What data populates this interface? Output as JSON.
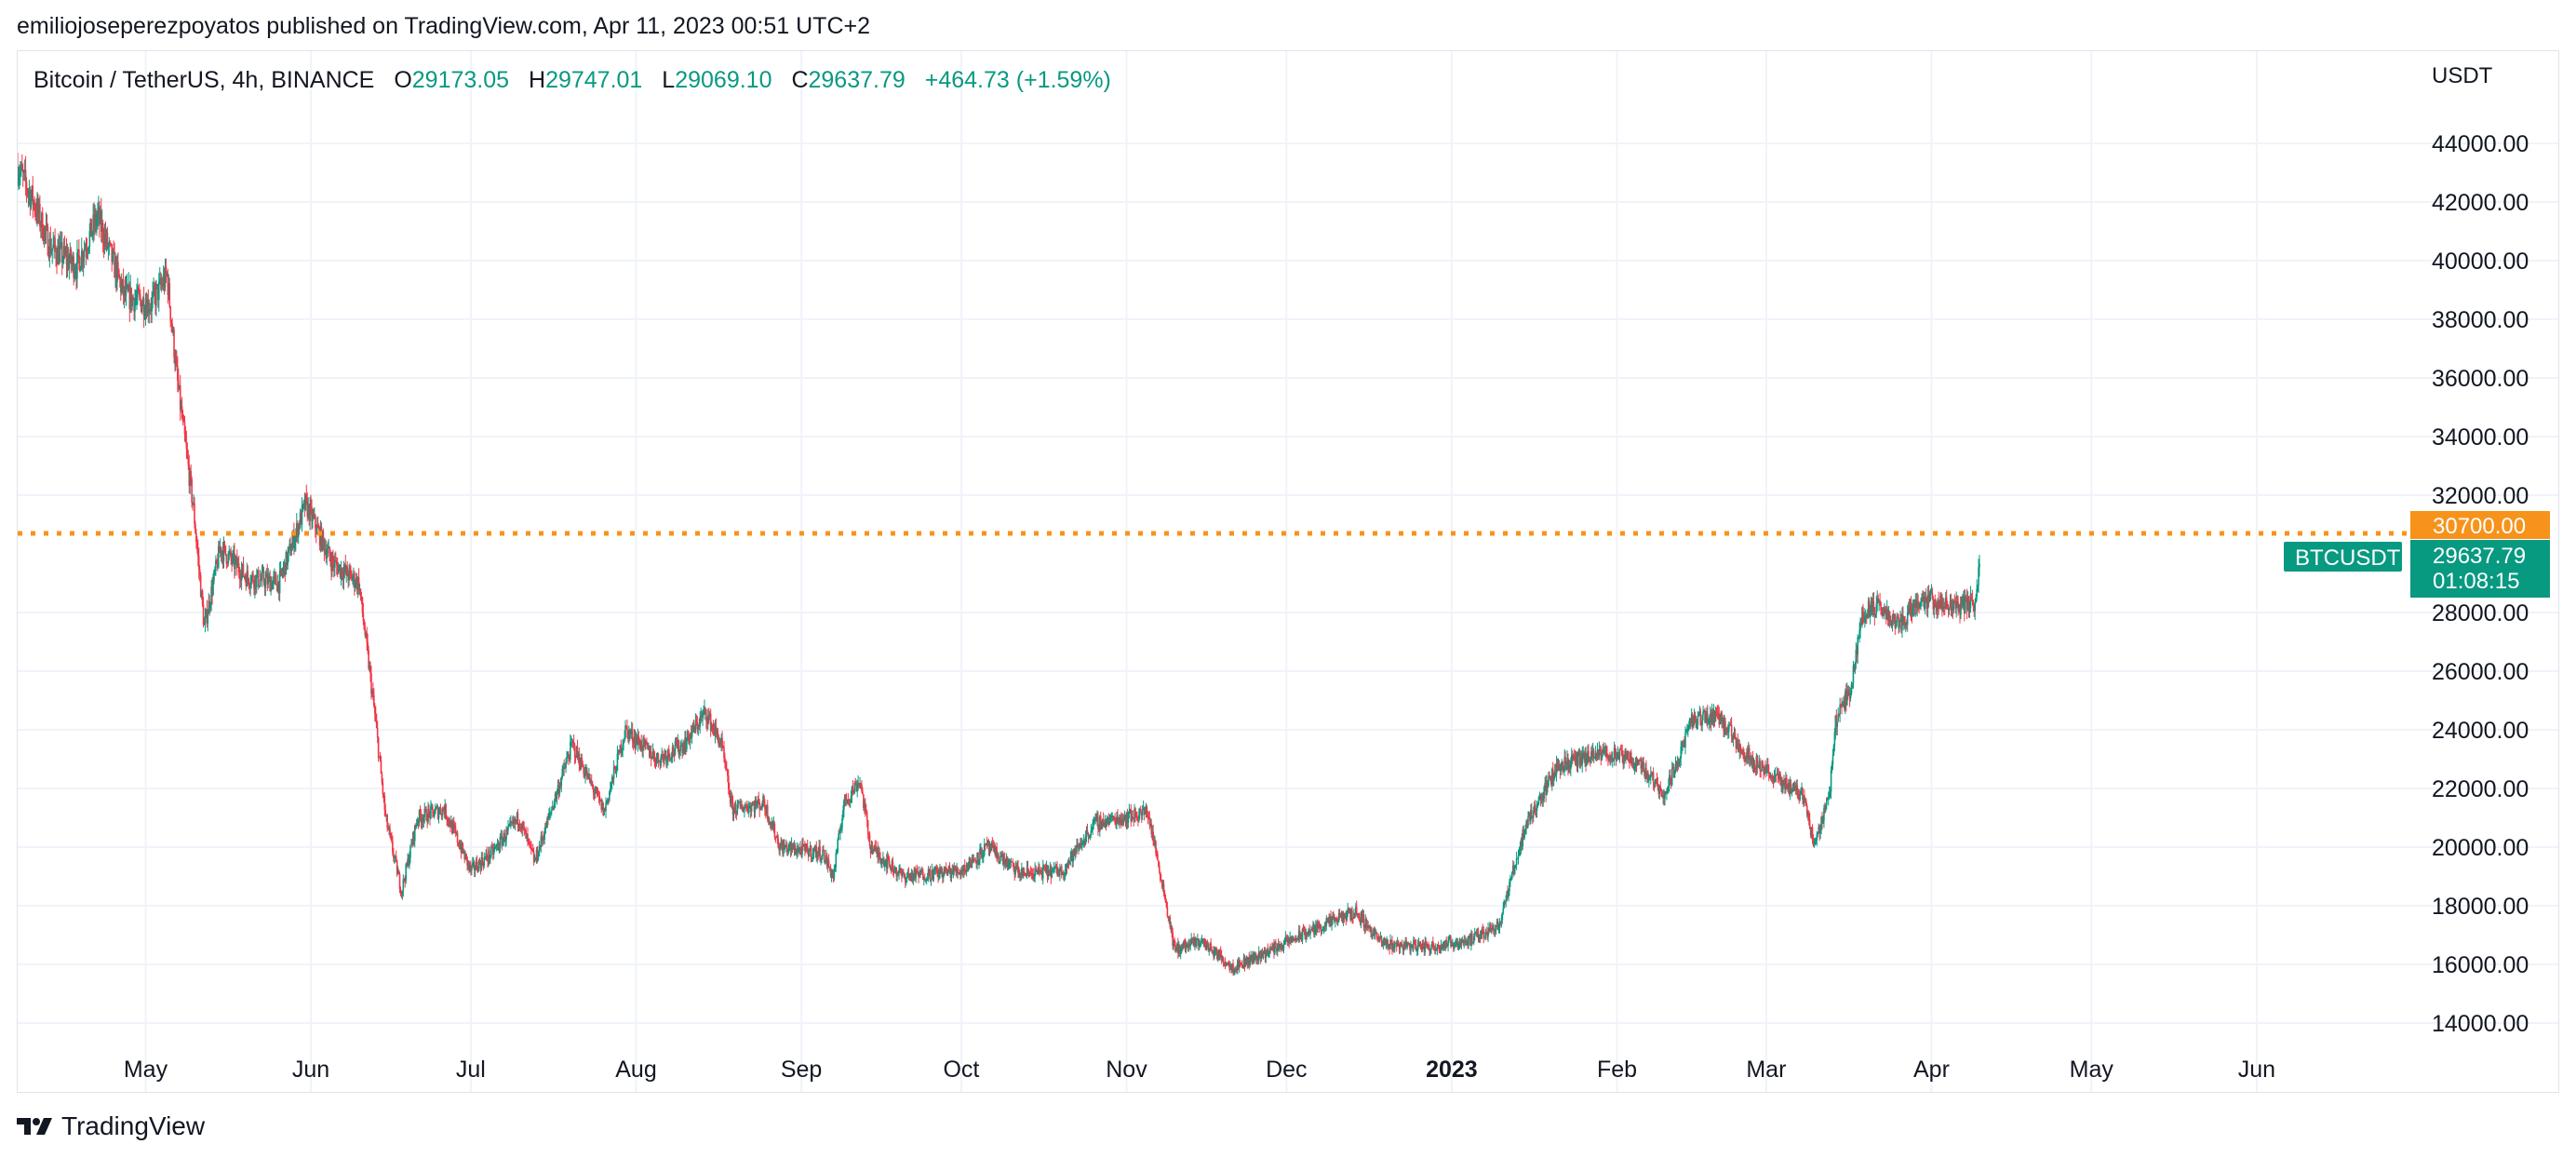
{
  "header": {
    "publisher_line": "emiliojoseperezpoyatos published on TradingView.com, Apr 11, 2023 00:51 UTC+2"
  },
  "legend": {
    "symbol": "Bitcoin / TetherUS, 4h, BINANCE",
    "open_label": "O",
    "open": "29173.05",
    "high_label": "H",
    "high": "29747.01",
    "low_label": "L",
    "low": "29069.10",
    "close_label": "C",
    "close": "29637.79",
    "change": "+464.73 (+1.59%)"
  },
  "footer": {
    "brand": "TradingView"
  },
  "colors": {
    "up": "#089981",
    "down": "#f23645",
    "level": "#f7931a",
    "grid": "#f0f3fa",
    "text": "#131722"
  },
  "chart_data": {
    "type": "candlestick",
    "symbol": "BTCUSDT",
    "interval": "4h",
    "exchange": "BINANCE",
    "currency_label": "USDT",
    "ylim": [
      12000,
      46000
    ],
    "y_ticks": [
      "14000.00",
      "16000.00",
      "18000.00",
      "20000.00",
      "22000.00",
      "24000.00",
      "26000.00",
      "28000.00",
      "32000.00",
      "34000.00",
      "36000.00",
      "38000.00",
      "40000.00",
      "42000.00",
      "44000.00"
    ],
    "x_ticks": [
      "May",
      "Jun",
      "Jul",
      "Aug",
      "Sep",
      "Oct",
      "Nov",
      "Dec",
      "2023",
      "Feb",
      "Mar",
      "Apr",
      "May",
      "Jun"
    ],
    "x_range": [
      "2022-04-07",
      "2023-06-30"
    ],
    "price_path": [
      {
        "date": "2022-04-07",
        "price": 43200
      },
      {
        "date": "2022-04-10",
        "price": 42000
      },
      {
        "date": "2022-04-13",
        "price": 40500
      },
      {
        "date": "2022-04-18",
        "price": 39800
      },
      {
        "date": "2022-04-22",
        "price": 41500
      },
      {
        "date": "2022-04-27",
        "price": 38800
      },
      {
        "date": "2022-05-02",
        "price": 38500
      },
      {
        "date": "2022-05-05",
        "price": 39500
      },
      {
        "date": "2022-05-07",
        "price": 35800
      },
      {
        "date": "2022-05-10",
        "price": 31500
      },
      {
        "date": "2022-05-12",
        "price": 27500
      },
      {
        "date": "2022-05-15",
        "price": 30200
      },
      {
        "date": "2022-05-20",
        "price": 29200
      },
      {
        "date": "2022-05-26",
        "price": 29000
      },
      {
        "date": "2022-05-31",
        "price": 31700
      },
      {
        "date": "2022-06-05",
        "price": 29700
      },
      {
        "date": "2022-06-10",
        "price": 29000
      },
      {
        "date": "2022-06-13",
        "price": 24500
      },
      {
        "date": "2022-06-15",
        "price": 21000
      },
      {
        "date": "2022-06-18",
        "price": 18500
      },
      {
        "date": "2022-06-21",
        "price": 21000
      },
      {
        "date": "2022-06-26",
        "price": 21300
      },
      {
        "date": "2022-07-01",
        "price": 19200
      },
      {
        "date": "2022-07-05",
        "price": 19800
      },
      {
        "date": "2022-07-10",
        "price": 21000
      },
      {
        "date": "2022-07-13",
        "price": 19500
      },
      {
        "date": "2022-07-20",
        "price": 23500
      },
      {
        "date": "2022-07-26",
        "price": 21200
      },
      {
        "date": "2022-07-30",
        "price": 24000
      },
      {
        "date": "2022-08-05",
        "price": 23000
      },
      {
        "date": "2022-08-10",
        "price": 23500
      },
      {
        "date": "2022-08-14",
        "price": 24600
      },
      {
        "date": "2022-08-17",
        "price": 23500
      },
      {
        "date": "2022-08-19",
        "price": 21300
      },
      {
        "date": "2022-08-25",
        "price": 21500
      },
      {
        "date": "2022-08-28",
        "price": 20000
      },
      {
        "date": "2022-09-05",
        "price": 19800
      },
      {
        "date": "2022-09-07",
        "price": 19000
      },
      {
        "date": "2022-09-09",
        "price": 21500
      },
      {
        "date": "2022-09-12",
        "price": 22300
      },
      {
        "date": "2022-09-14",
        "price": 20000
      },
      {
        "date": "2022-09-20",
        "price": 19000
      },
      {
        "date": "2022-10-01",
        "price": 19200
      },
      {
        "date": "2022-10-06",
        "price": 20000
      },
      {
        "date": "2022-10-12",
        "price": 19100
      },
      {
        "date": "2022-10-20",
        "price": 19200
      },
      {
        "date": "2022-10-26",
        "price": 20800
      },
      {
        "date": "2022-11-05",
        "price": 21200
      },
      {
        "date": "2022-11-08",
        "price": 18500
      },
      {
        "date": "2022-11-10",
        "price": 16500
      },
      {
        "date": "2022-11-15",
        "price": 16800
      },
      {
        "date": "2022-11-21",
        "price": 15900
      },
      {
        "date": "2022-11-27",
        "price": 16400
      },
      {
        "date": "2022-12-05",
        "price": 17100
      },
      {
        "date": "2022-12-14",
        "price": 17800
      },
      {
        "date": "2022-12-19",
        "price": 16700
      },
      {
        "date": "2022-12-28",
        "price": 16600
      },
      {
        "date": "2023-01-05",
        "price": 16850
      },
      {
        "date": "2023-01-10",
        "price": 17400
      },
      {
        "date": "2023-01-13",
        "price": 19500
      },
      {
        "date": "2023-01-15",
        "price": 20800
      },
      {
        "date": "2023-01-21",
        "price": 22800
      },
      {
        "date": "2023-01-30",
        "price": 23200
      },
      {
        "date": "2023-02-05",
        "price": 22900
      },
      {
        "date": "2023-02-10",
        "price": 21800
      },
      {
        "date": "2023-02-15",
        "price": 24300
      },
      {
        "date": "2023-02-20",
        "price": 24500
      },
      {
        "date": "2023-02-25",
        "price": 23200
      },
      {
        "date": "2023-03-03",
        "price": 22300
      },
      {
        "date": "2023-03-08",
        "price": 21800
      },
      {
        "date": "2023-03-10",
        "price": 20000
      },
      {
        "date": "2023-03-13",
        "price": 22000
      },
      {
        "date": "2023-03-14",
        "price": 24300
      },
      {
        "date": "2023-03-17",
        "price": 25500
      },
      {
        "date": "2023-03-19",
        "price": 28000
      },
      {
        "date": "2023-03-22",
        "price": 28200
      },
      {
        "date": "2023-03-26",
        "price": 27600
      },
      {
        "date": "2023-03-30",
        "price": 28500
      },
      {
        "date": "2023-04-04",
        "price": 28200
      },
      {
        "date": "2023-04-09",
        "price": 28300
      },
      {
        "date": "2023-04-10",
        "price": 29637.79
      }
    ],
    "horizontal_level": {
      "value": 30700,
      "label": "30700.00"
    },
    "last_price": {
      "symbol_label": "BTCUSDT",
      "value": "29637.79",
      "countdown": "01:08:15"
    }
  }
}
